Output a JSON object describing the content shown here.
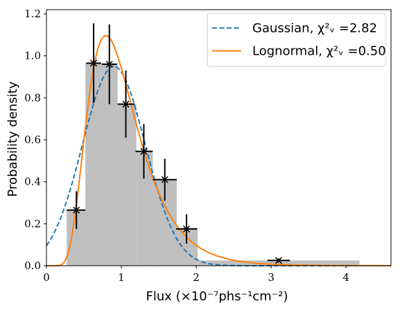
{
  "chart_data": {
    "type": "histogram-with-fits",
    "xlabel": "Flux (×10⁻⁷phs⁻¹cm⁻²)",
    "ylabel": "Probability density",
    "xlim": [
      0,
      4.6
    ],
    "ylim": [
      0,
      1.22
    ],
    "x_ticks": [
      0,
      1,
      2,
      3,
      4
    ],
    "x_tick_labels": [
      "0",
      "1",
      "2",
      "3",
      "4"
    ],
    "y_ticks": [
      0.0,
      0.2,
      0.4,
      0.6,
      0.8,
      1.0,
      1.2
    ],
    "y_tick_labels": [
      "0.0",
      "0.2",
      "0.4",
      "0.6",
      "0.8",
      "1.0",
      "1.2"
    ],
    "grid": false,
    "legend_position": "top-right",
    "histogram": {
      "color": "#bfbfbf",
      "bins": [
        {
          "x0": 0.27,
          "x1": 0.52,
          "value": 0.265
        },
        {
          "x0": 0.52,
          "x1": 0.95,
          "value": 0.965
        },
        {
          "x0": 0.95,
          "x1": 1.2,
          "value": 0.77
        },
        {
          "x0": 1.2,
          "x1": 1.42,
          "value": 0.545
        },
        {
          "x0": 1.42,
          "x1": 1.74,
          "value": 0.41
        },
        {
          "x0": 1.74,
          "x1": 2.02,
          "value": 0.18
        },
        {
          "x0": 2.02,
          "x1": 4.18,
          "value": 0.025
        }
      ]
    },
    "points": [
      {
        "x": 0.4,
        "y": 0.265,
        "xerr_lo": 0.13,
        "xerr_hi": 0.12,
        "yerr": 0.09
      },
      {
        "x": 0.63,
        "y": 0.965,
        "xerr_lo": 0.1,
        "xerr_hi": 0.1,
        "yerr": 0.19
      },
      {
        "x": 0.84,
        "y": 0.96,
        "xerr_lo": 0.1,
        "xerr_hi": 0.1,
        "yerr": 0.19
      },
      {
        "x": 1.06,
        "y": 0.77,
        "xerr_lo": 0.11,
        "xerr_hi": 0.12,
        "yerr": 0.16
      },
      {
        "x": 1.3,
        "y": 0.545,
        "xerr_lo": 0.11,
        "xerr_hi": 0.12,
        "yerr": 0.13
      },
      {
        "x": 1.58,
        "y": 0.41,
        "xerr_lo": 0.16,
        "xerr_hi": 0.16,
        "yerr": 0.1
      },
      {
        "x": 1.87,
        "y": 0.175,
        "xerr_lo": 0.14,
        "xerr_hi": 0.14,
        "yerr": 0.07
      },
      {
        "x": 3.1,
        "y": 0.025,
        "xerr_lo": 0.15,
        "xerr_hi": 0.15,
        "yerr": 0.01
      }
    ],
    "series": [
      {
        "name": "Gaussian, χ²ᵥ =2.82",
        "style": "dashed",
        "color": "#1f77b4",
        "model": "gaussian",
        "params": {
          "mu": 0.9,
          "sigma": 0.42
        }
      },
      {
        "name": "Lognormal, χ²ᵥ =0.50",
        "style": "solid",
        "color": "#ff7f0e",
        "model": "lognormal",
        "params": {
          "mu": -0.055,
          "sigma": 0.42
        }
      }
    ]
  }
}
